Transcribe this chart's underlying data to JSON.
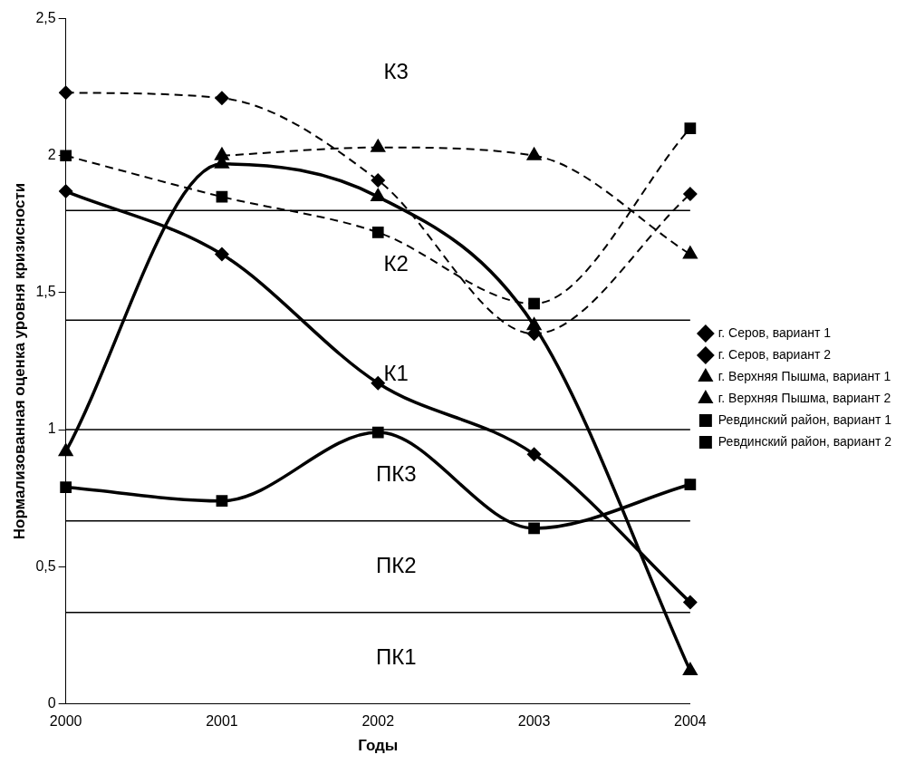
{
  "chart_data": {
    "type": "line",
    "xlabel": "Годы",
    "ylabel": "Нормализованная оценка уровня кризисности",
    "categories": [
      "2000",
      "2001",
      "2002",
      "2003",
      "2004"
    ],
    "ylim": [
      0,
      2.5
    ],
    "yticks": [
      0,
      {
        "value": 0.5,
        "label": "0,5"
      },
      1,
      {
        "value": 1.5,
        "label": "1,5"
      },
      2,
      {
        "value": 2.5,
        "label": "2,5"
      }
    ],
    "grid": false,
    "legend": "right",
    "series": [
      {
        "name": "г. Серов, вариант 1",
        "color": "#000000",
        "marker": "diamond",
        "line_style": "solid",
        "values": [
          1.87,
          1.64,
          1.17,
          0.91,
          0.37
        ]
      },
      {
        "name": "г. Серов, вариант 2",
        "color": "#000000",
        "marker": "diamond",
        "line_style": "dashed",
        "values": [
          2.23,
          2.21,
          1.91,
          1.35,
          1.86
        ]
      },
      {
        "name": "г. Верхняя Пышма, вариант 1",
        "color": "#000000",
        "marker": "triangle",
        "line_style": "solid",
        "values": [
          0.92,
          1.97,
          1.85,
          1.38,
          0.12
        ]
      },
      {
        "name": "г. Верхняя Пышма, вариант 2",
        "color": "#000000",
        "marker": "triangle",
        "line_style": "dashed",
        "values": [
          null,
          2.0,
          2.03,
          2.0,
          1.64
        ]
      },
      {
        "name": "Ревдинский район, вариант 1",
        "color": "#000000",
        "marker": "square",
        "line_style": "solid",
        "values": [
          0.79,
          0.74,
          0.99,
          0.64,
          0.8
        ]
      },
      {
        "name": "Ревдинский район, вариант 2",
        "color": "#000000",
        "marker": "square",
        "line_style": "dashed",
        "values": [
          2.0,
          1.85,
          1.72,
          1.46,
          2.1
        ]
      }
    ],
    "ref_lines": [
      {
        "axis": "y",
        "value": 1.8
      },
      {
        "axis": "y",
        "value": 1.4
      },
      {
        "axis": "y",
        "value": 1.0
      },
      {
        "axis": "y",
        "value": 0.667
      },
      {
        "axis": "y",
        "value": 0.333
      }
    ],
    "annotations": [
      "К3",
      "К2",
      "К1",
      "ПК3",
      "ПК2",
      "ПК1"
    ]
  }
}
